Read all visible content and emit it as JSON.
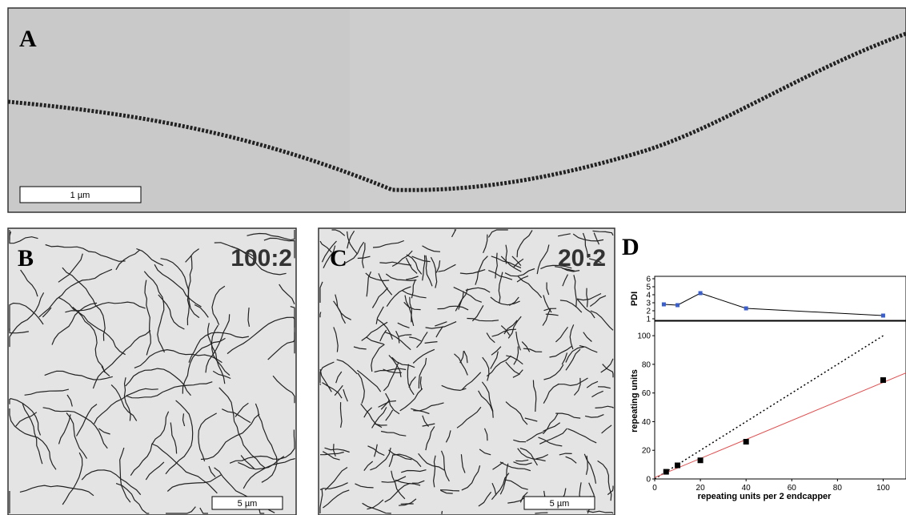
{
  "panels": {
    "a": {
      "label": "A",
      "scale_bar": "1 µm"
    },
    "b": {
      "label": "B",
      "ratio": "100:2",
      "scale_bar": "5 µm"
    },
    "c": {
      "label": "C",
      "ratio": "20:2",
      "scale_bar": "5 µm"
    },
    "d": {
      "label": "D"
    }
  },
  "chart_data": [
    {
      "type": "line",
      "ylabel": "PDI",
      "xlim": [
        0,
        110
      ],
      "ylim": [
        1,
        6
      ],
      "yticks": [
        1,
        2,
        3,
        4,
        5,
        6
      ],
      "series": [
        {
          "kind": "line+marker",
          "color": "#3a5fcd",
          "line_color": "#000000",
          "x": [
            4,
            10,
            20,
            40,
            100
          ],
          "values": [
            2.8,
            2.7,
            4.2,
            2.3,
            1.4
          ]
        }
      ]
    },
    {
      "type": "scatter",
      "xlabel": "repeating units per 2 endcapper",
      "ylabel": "repeating units",
      "xlim": [
        0,
        110
      ],
      "ylim": [
        0,
        109
      ],
      "xticks": [
        0,
        20,
        40,
        60,
        80,
        100
      ],
      "yticks": [
        0,
        20,
        40,
        60,
        80,
        100
      ],
      "series": [
        {
          "kind": "line",
          "dash": true,
          "color": "#000000",
          "x": [
            0,
            100
          ],
          "values": [
            0,
            100
          ]
        },
        {
          "kind": "line",
          "dash": false,
          "color": "#e05050",
          "x": [
            0,
            110
          ],
          "values": [
            1,
            74
          ]
        },
        {
          "kind": "marker",
          "color": "#000000",
          "x": [
            5,
            10,
            20,
            40,
            100
          ],
          "values": [
            5,
            9.5,
            13,
            26,
            69
          ]
        }
      ]
    }
  ]
}
